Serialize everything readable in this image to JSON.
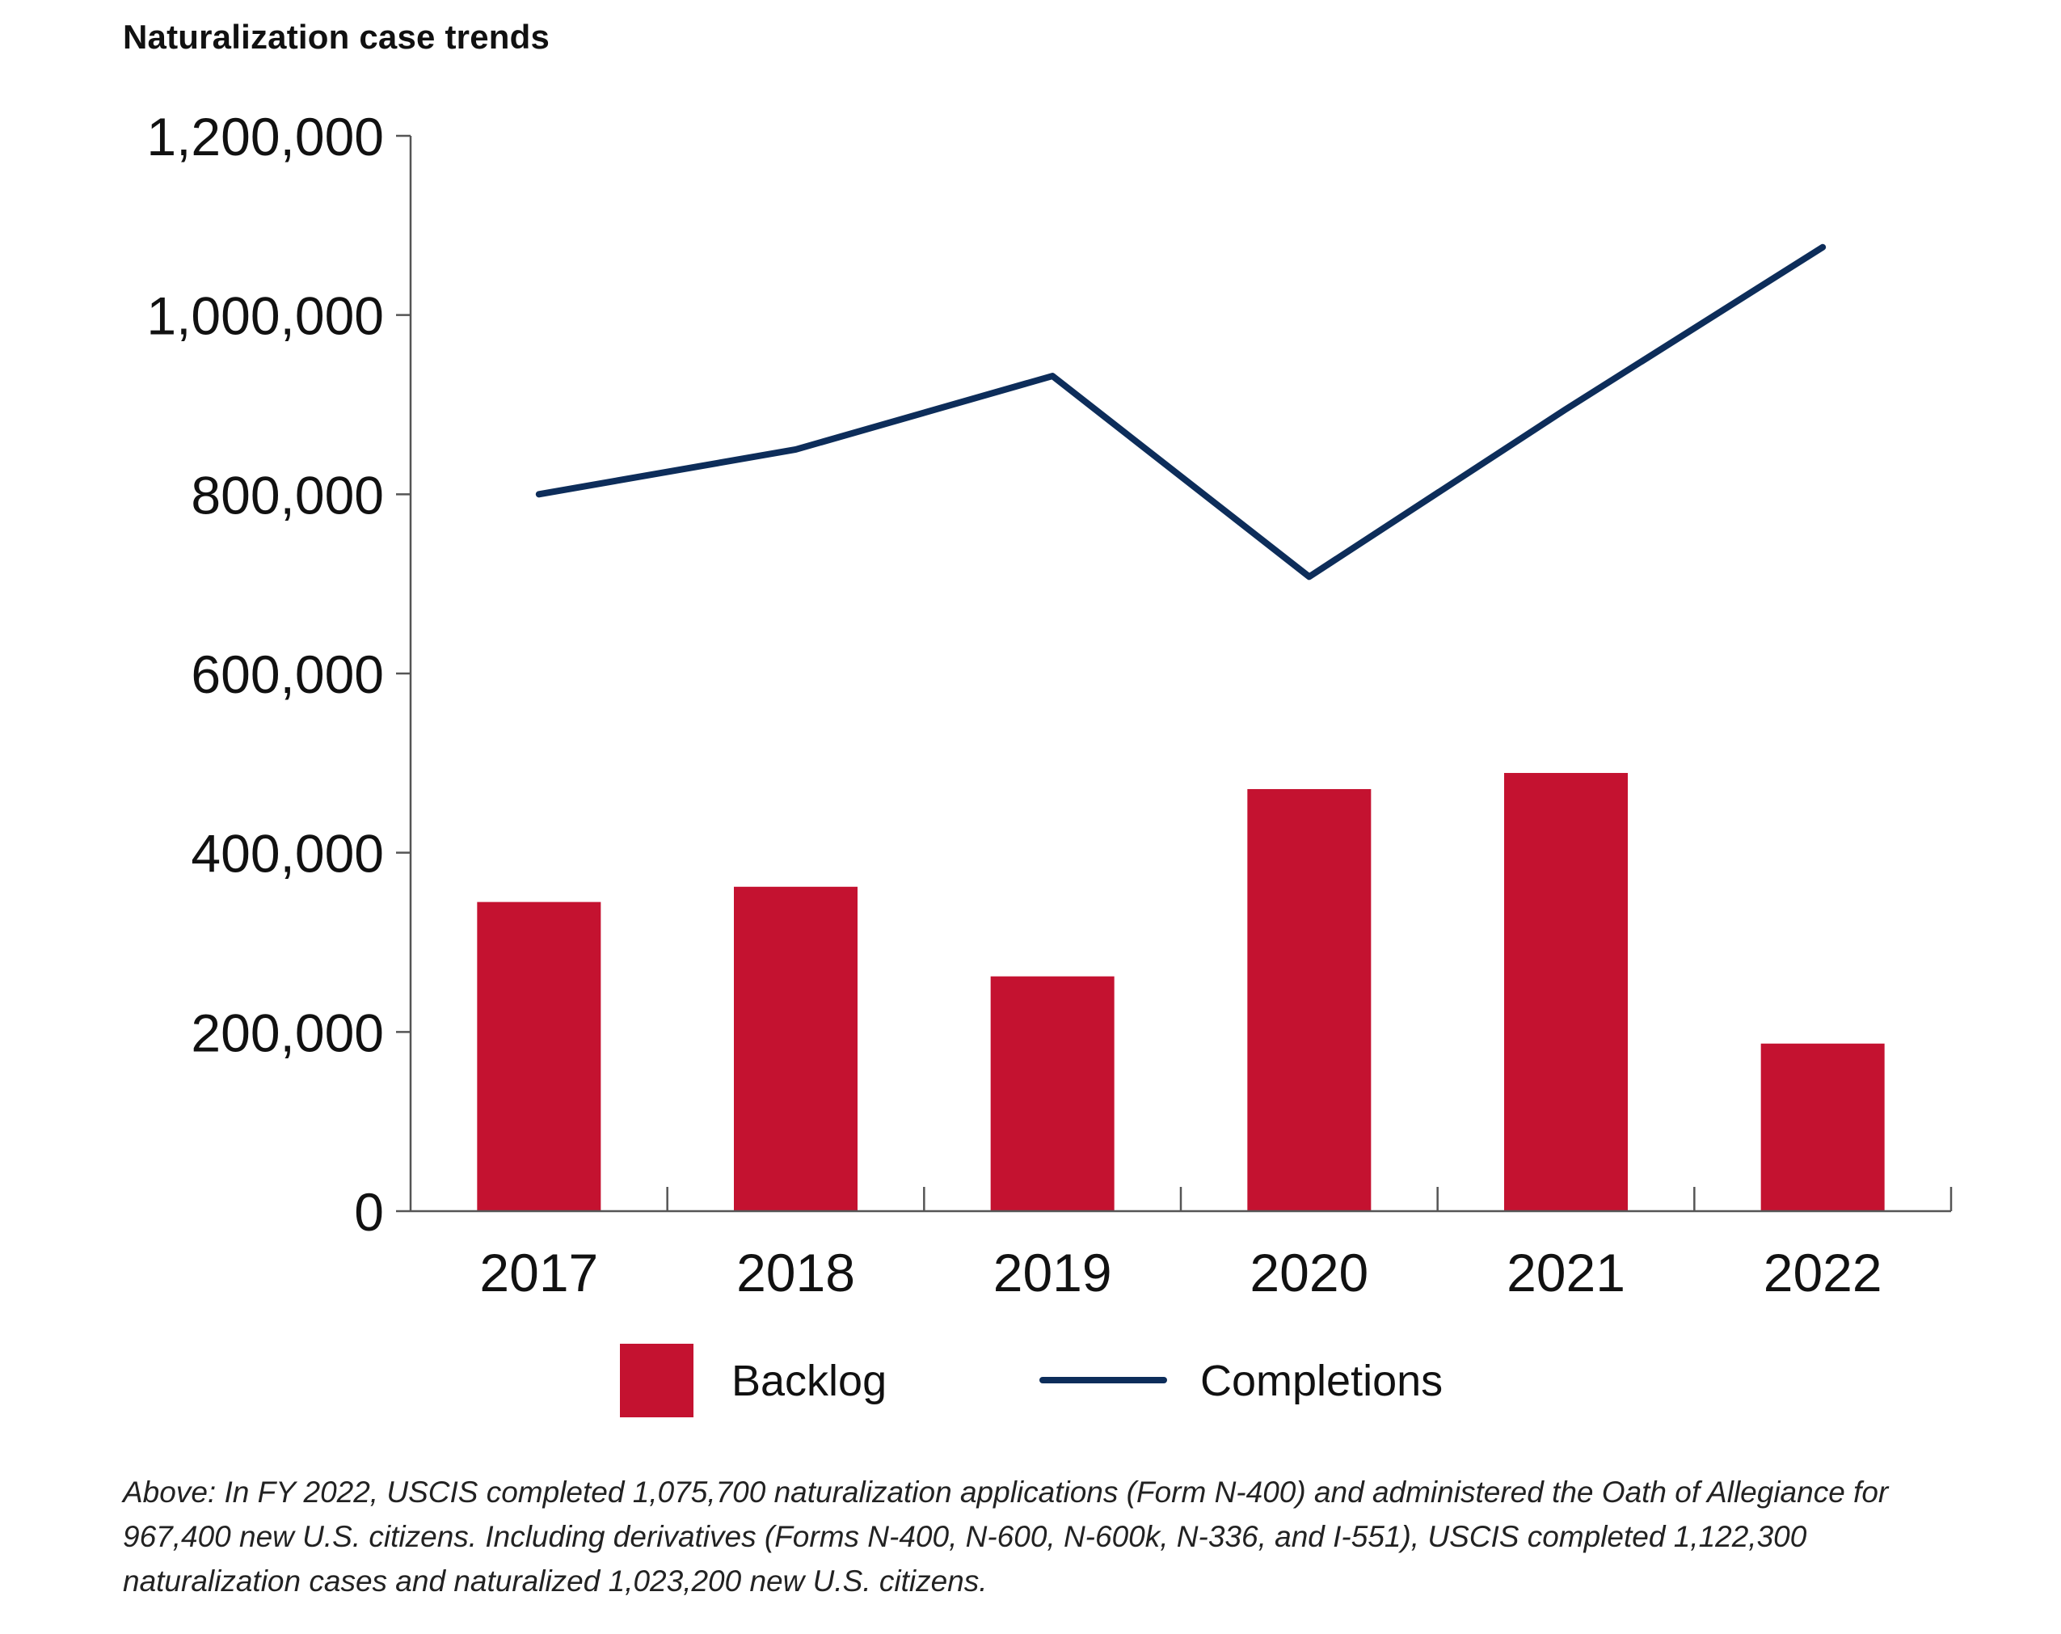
{
  "colors": {
    "backlog": "#c41230",
    "completions": "#0d2d5a",
    "axis": "#555555"
  },
  "chart_data": {
    "type": "bar",
    "title": "Naturalization case trends",
    "categories": [
      "2017",
      "2018",
      "2019",
      "2020",
      "2021",
      "2022"
    ],
    "series": [
      {
        "name": "Backlog",
        "type": "bar",
        "values": [
          345000,
          362000,
          262000,
          471000,
          489000,
          187000
        ]
      },
      {
        "name": "Completions",
        "type": "line",
        "values": [
          800000,
          850000,
          932000,
          708000,
          895000,
          1075700
        ]
      }
    ],
    "ylim": [
      0,
      1200000
    ],
    "yticks": [
      0,
      200000,
      400000,
      600000,
      800000,
      1000000,
      1200000
    ],
    "ytick_labels": [
      "0",
      "200,000",
      "400,000",
      "600,000",
      "800,000",
      "1,000,000",
      "1,200,000"
    ],
    "xlabel": "",
    "ylabel": "",
    "grid": false,
    "legend": {
      "position": "bottom-center",
      "entries": [
        {
          "label": "Backlog",
          "marker": "square"
        },
        {
          "label": "Completions",
          "marker": "line"
        }
      ]
    }
  },
  "caption": "Above: In FY 2022, USCIS completed 1,075,700 naturalization applications (Form N-400) and administered the Oath of Allegiance for 967,400 new U.S. citizens. Including derivatives (Forms N-400, N-600, N-600k, N-336, and I-551), USCIS completed 1,122,300 naturalization cases and naturalized 1,023,200 new U.S. citizens."
}
